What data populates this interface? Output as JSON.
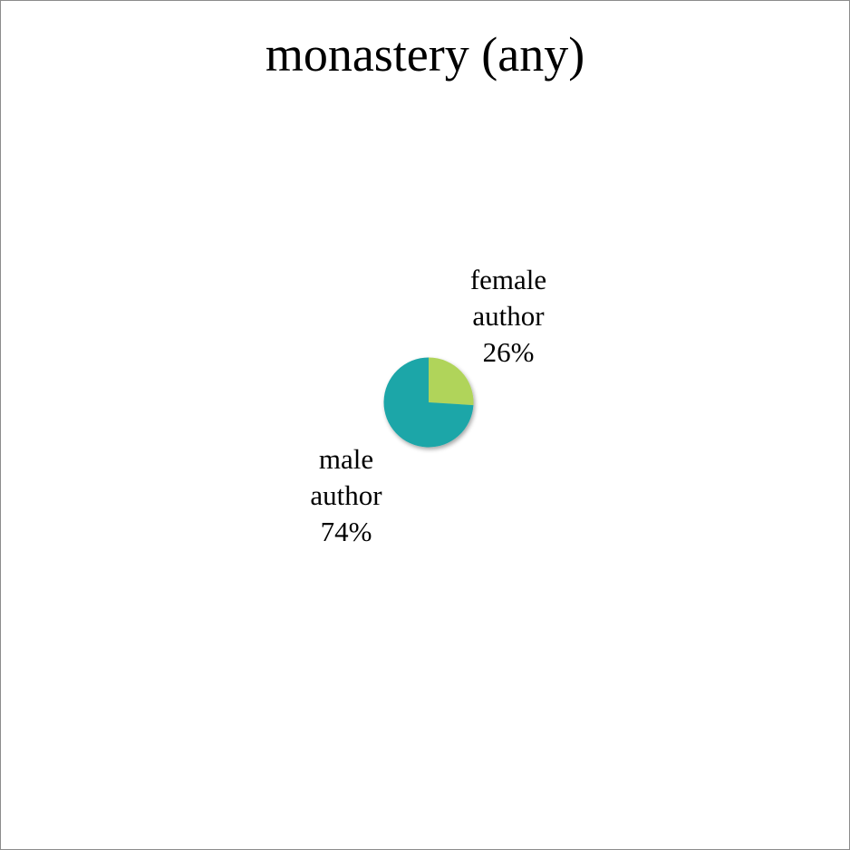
{
  "chart_data": {
    "type": "pie",
    "title": "monastery (any)",
    "slices": [
      {
        "label_line1": "female",
        "label_line2": "author",
        "percent_label": "26%",
        "value": 26,
        "color": "#b0d45a"
      },
      {
        "label_line1": "male",
        "label_line2": "author",
        "percent_label": "74%",
        "value": 74,
        "color": "#1ea6a8"
      }
    ],
    "legend": "none"
  }
}
